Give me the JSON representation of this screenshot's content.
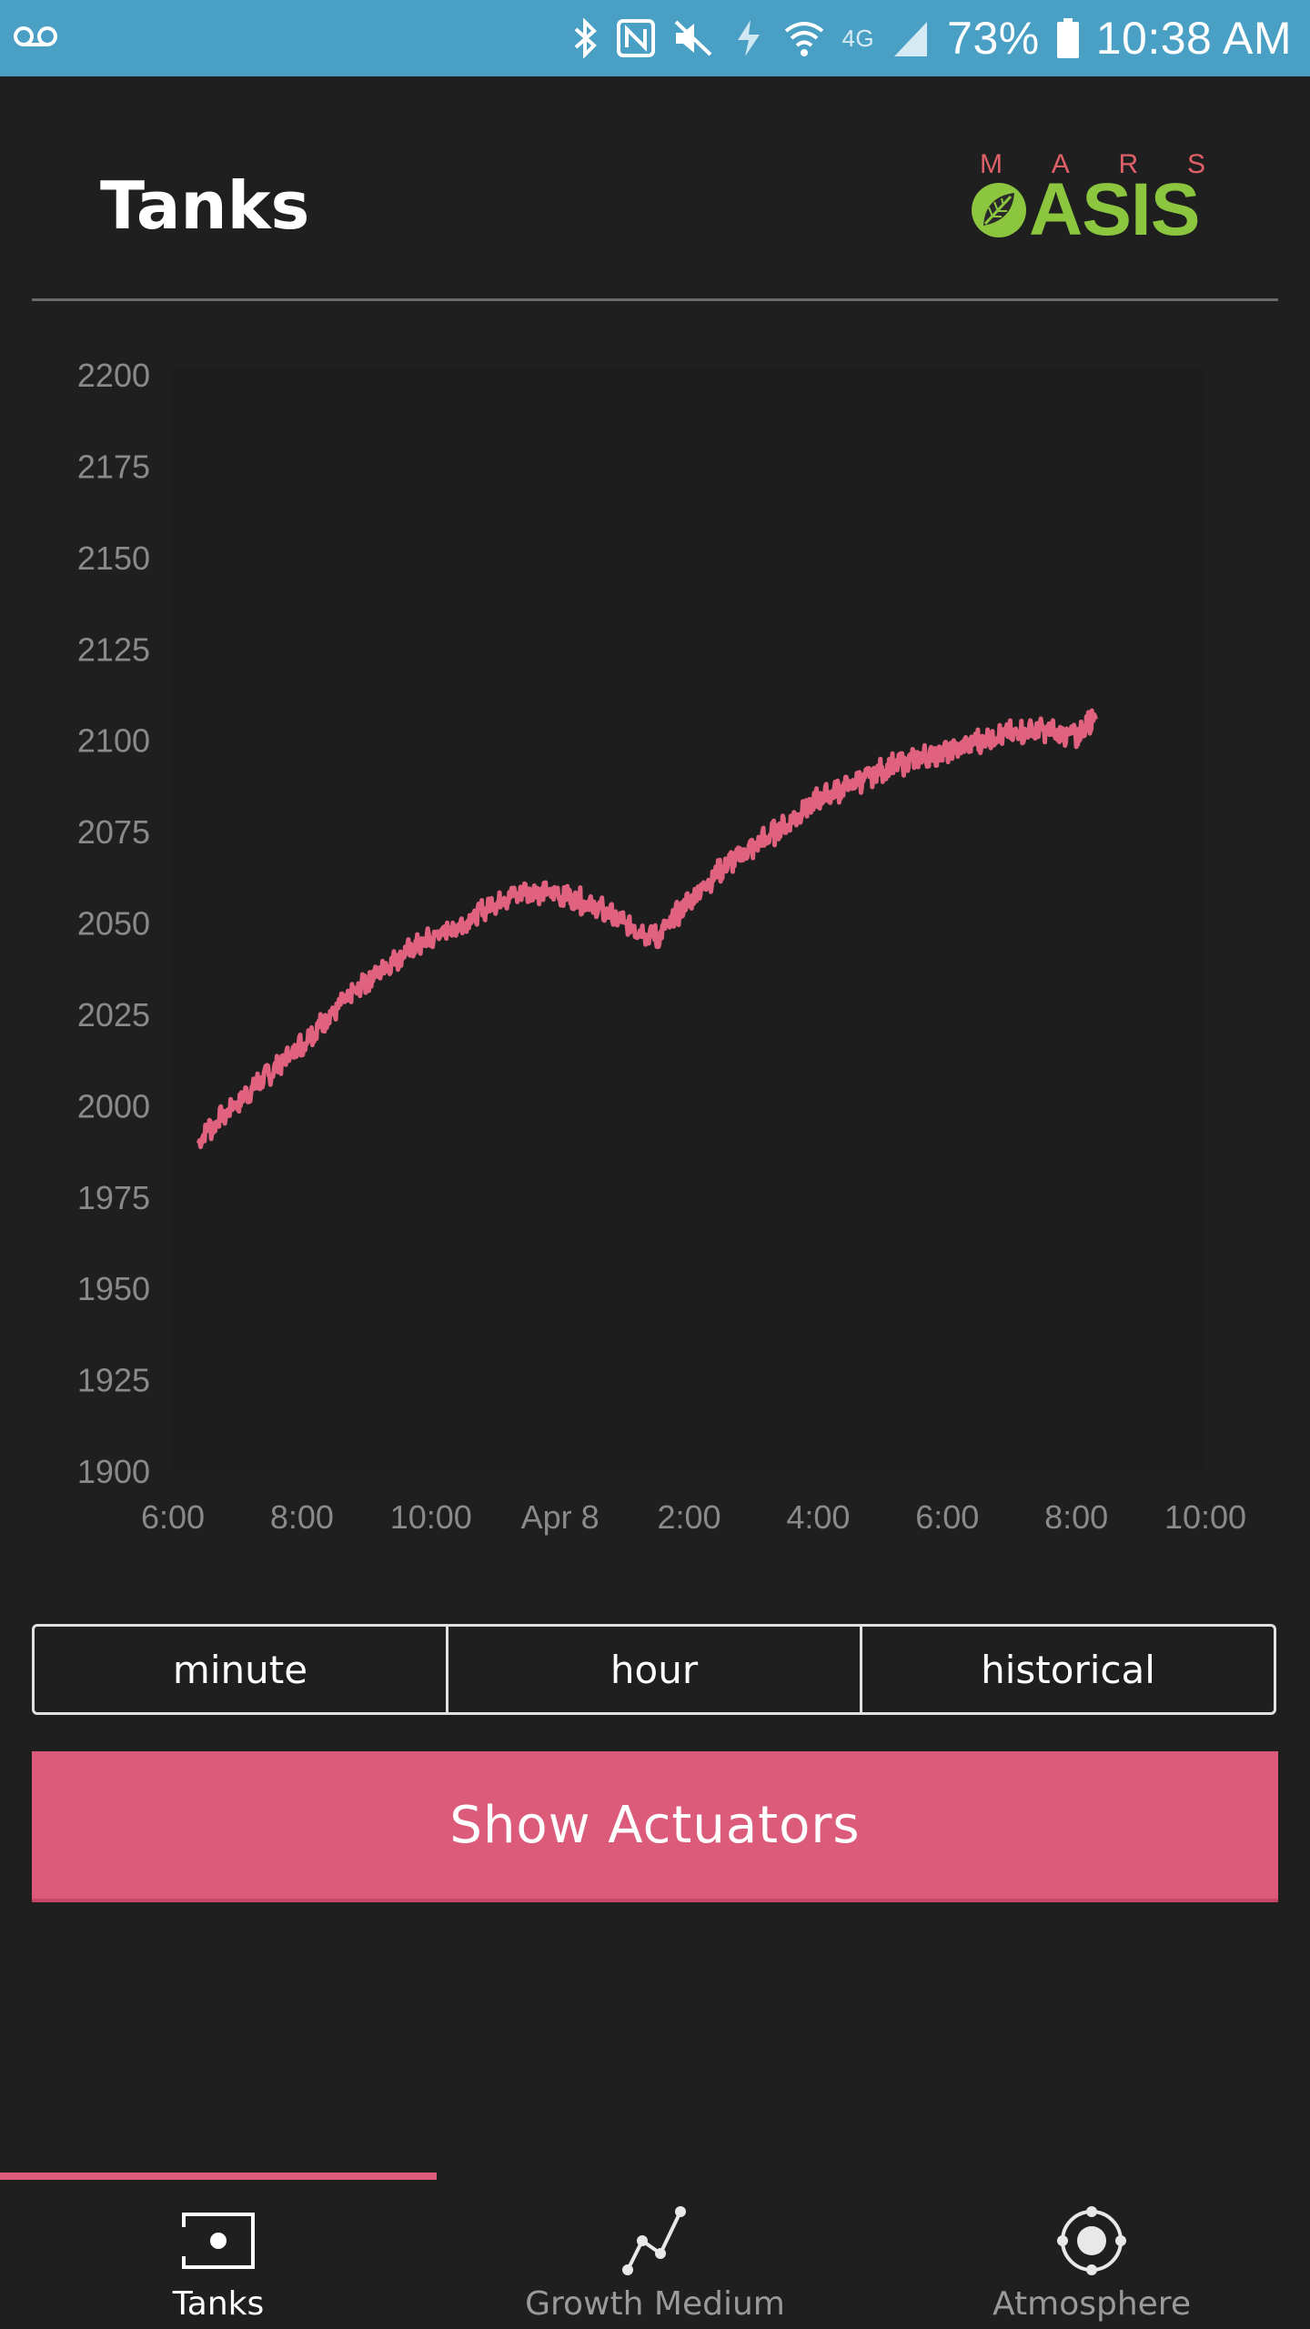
{
  "status_bar": {
    "battery": "73%",
    "time": "10:38 AM",
    "network": "4G",
    "icons": [
      "voicemail-icon",
      "bluetooth-icon",
      "nfc-icon",
      "mute-icon",
      "data-saver-icon",
      "wifi-icon",
      "signal-icon",
      "battery-icon"
    ]
  },
  "header": {
    "title": "Tanks",
    "logo": {
      "top_text": "M A R S",
      "brand_text": "ASIS",
      "colors": {
        "mars": "#e0606a",
        "oasis": "#8cc63f"
      }
    }
  },
  "chart_data": {
    "type": "line",
    "title": "",
    "xlabel": "",
    "ylabel": "",
    "ylim": [
      1900,
      2200
    ],
    "yticks": [
      "2200",
      "2175",
      "2150",
      "2125",
      "2100",
      "2075",
      "2050",
      "2025",
      "2000",
      "1975",
      "1950",
      "1925",
      "1900"
    ],
    "xticks": [
      "6:00",
      "8:00",
      "10:00",
      "Apr 8",
      "2:00",
      "4:00",
      "6:00",
      "8:00",
      "10:00"
    ],
    "xtick_hours": [
      6,
      8,
      10,
      12,
      14,
      16,
      18,
      20,
      22
    ],
    "grid": false,
    "legend": "none",
    "line_color": "#e0627f",
    "series": [
      {
        "x": [
          6.4,
          7.0,
          7.5,
          8.0,
          8.5,
          9.0,
          9.5,
          10.0,
          10.5,
          11.0,
          11.5,
          12.0,
          12.5,
          13.0,
          13.5,
          14.0,
          14.5,
          15.0,
          15.5,
          16.0,
          16.5,
          17.0,
          17.5,
          18.0,
          18.5,
          19.0,
          19.5,
          20.0,
          20.3
        ],
        "y": [
          1990,
          2000,
          2008,
          2016,
          2025,
          2033,
          2040,
          2045,
          2049,
          2055,
          2058,
          2057,
          2054,
          2049,
          2045,
          2055,
          2064,
          2070,
          2076,
          2083,
          2087,
          2091,
          2094,
          2096,
          2099,
          2101,
          2102,
          2100,
          2106
        ]
      }
    ]
  },
  "range_options": [
    "minute",
    "hour",
    "historical"
  ],
  "actions": {
    "show_actuators": "Show Actuators"
  },
  "bottom_nav": [
    {
      "label": "Tanks",
      "icon": "tank-icon",
      "active": true
    },
    {
      "label": "Growth Medium",
      "icon": "graph-nodes-icon",
      "active": false
    },
    {
      "label": "Atmosphere",
      "icon": "orbit-icon",
      "active": false
    }
  ]
}
